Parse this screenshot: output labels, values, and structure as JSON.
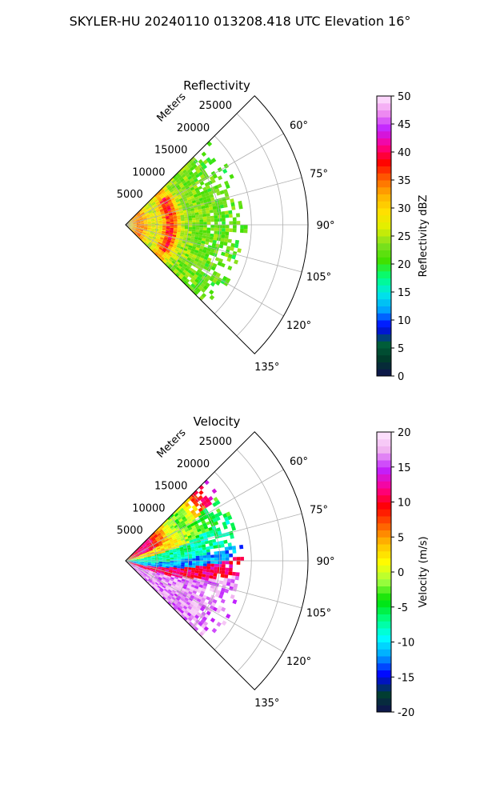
{
  "figure_title": "SKYLER-HU  20240110  013208.418 UTC Elevation 16°",
  "chart_data": [
    {
      "type": "heatmap",
      "title": "Reflectivity",
      "projection": "polar-sector",
      "range_axis_label": "Meters",
      "range_ticks": [
        5000,
        10000,
        15000,
        20000,
        25000
      ],
      "range_max": 29000,
      "data_max_range": 20000,
      "azimuth_range_deg": [
        45,
        135
      ],
      "azimuth_ticks": [
        "60°",
        "75°",
        "90°",
        "105°",
        "120°",
        "135°"
      ],
      "azimuth_tick_values": [
        60,
        75,
        90,
        105,
        120,
        135
      ],
      "colorbar": {
        "label": "Reflectivity dBZ",
        "min": 0,
        "max": 50,
        "ticks": [
          0,
          5,
          10,
          15,
          20,
          25,
          30,
          35,
          40,
          45,
          50
        ],
        "colors": [
          "#101050",
          "#003a2a",
          "#00603a",
          "#0000ff",
          "#00a0ff",
          "#00e8e8",
          "#00ff80",
          "#40e000",
          "#80e020",
          "#e0f000",
          "#ffe000",
          "#ffb000",
          "#ff6000",
          "#ff0000",
          "#ff0090",
          "#c020ff",
          "#f090f0",
          "#ffe8ff"
        ]
      }
    },
    {
      "type": "heatmap",
      "title": "Velocity",
      "projection": "polar-sector",
      "range_axis_label": "Meters",
      "range_ticks": [
        5000,
        10000,
        15000,
        20000,
        25000
      ],
      "range_max": 29000,
      "data_max_range": 20000,
      "azimuth_range_deg": [
        45,
        135
      ],
      "azimuth_ticks": [
        "60°",
        "75°",
        "90°",
        "105°",
        "120°",
        "135°"
      ],
      "azimuth_tick_values": [
        60,
        75,
        90,
        105,
        120,
        135
      ],
      "colorbar": {
        "label": "Velocity (m/s)",
        "min": -20,
        "max": 20,
        "ticks": [
          -20,
          -15,
          -10,
          -5,
          0,
          5,
          10,
          15,
          20
        ],
        "colors": [
          "#101050",
          "#004030",
          "#0000ff",
          "#00a0ff",
          "#00ffff",
          "#00ff80",
          "#00e000",
          "#a0ff40",
          "#ffff00",
          "#ffc000",
          "#ff6000",
          "#ff0000",
          "#ff0090",
          "#c020ff",
          "#f0b0f0",
          "#ffe8ff"
        ]
      }
    }
  ]
}
